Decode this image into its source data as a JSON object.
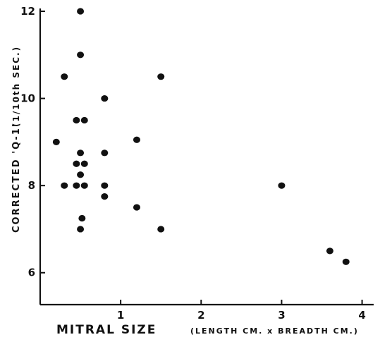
{
  "chart_data": {
    "type": "scatter",
    "xlabel": "MITRAL SIZE",
    "xlabel_units": "(LENGTH CM. x BREADTH CM.)",
    "ylabel": "CORRECTED 'Q-1'",
    "ylabel_units": "(1/10th SEC.)",
    "xlim": [
      0,
      4.1
    ],
    "ylim": [
      5.3,
      12
    ],
    "x_ticks": [
      1,
      2,
      3,
      4
    ],
    "x_tick_labels": [
      "1",
      "2",
      "3",
      "4"
    ],
    "y_ticks": [
      6,
      8,
      10,
      12
    ],
    "y_tick_labels": [
      "6",
      "8",
      "10",
      "12"
    ],
    "grid": false,
    "legend": "none",
    "marker_color": "#111111",
    "points": [
      {
        "x": 0.2,
        "y": 9.0
      },
      {
        "x": 0.3,
        "y": 10.5
      },
      {
        "x": 0.3,
        "y": 8.0
      },
      {
        "x": 0.45,
        "y": 9.5
      },
      {
        "x": 0.45,
        "y": 8.5
      },
      {
        "x": 0.45,
        "y": 8.0
      },
      {
        "x": 0.5,
        "y": 12.0
      },
      {
        "x": 0.5,
        "y": 11.0
      },
      {
        "x": 0.5,
        "y": 8.75
      },
      {
        "x": 0.5,
        "y": 8.25
      },
      {
        "x": 0.5,
        "y": 7.0
      },
      {
        "x": 0.52,
        "y": 7.25
      },
      {
        "x": 0.55,
        "y": 9.5
      },
      {
        "x": 0.55,
        "y": 8.5
      },
      {
        "x": 0.55,
        "y": 8.0
      },
      {
        "x": 0.8,
        "y": 10.0
      },
      {
        "x": 0.8,
        "y": 8.75
      },
      {
        "x": 0.8,
        "y": 8.0
      },
      {
        "x": 0.8,
        "y": 7.75
      },
      {
        "x": 1.2,
        "y": 9.05
      },
      {
        "x": 1.2,
        "y": 7.5
      },
      {
        "x": 1.5,
        "y": 10.5
      },
      {
        "x": 1.5,
        "y": 7.0
      },
      {
        "x": 3.0,
        "y": 8.0
      },
      {
        "x": 3.6,
        "y": 6.5
      },
      {
        "x": 3.8,
        "y": 6.25
      }
    ]
  }
}
